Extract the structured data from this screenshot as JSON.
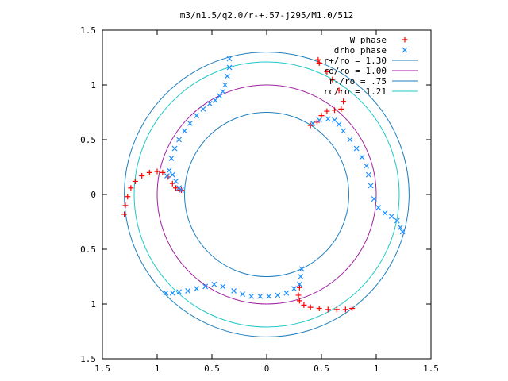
{
  "chart_data": {
    "type": "scatter",
    "title": "m3/n1.5/q2.0/r-+.57-j295/M1.0/512",
    "xlabel": "",
    "ylabel": "",
    "xlim": [
      -1.5,
      1.5
    ],
    "ylim": [
      -1.5,
      1.5
    ],
    "x_tick_labels": [
      "1.5",
      "1",
      "0.5",
      "0",
      "0.5",
      "1",
      "1.5"
    ],
    "y_tick_labels": [
      "1.5",
      "1",
      "0.5",
      "0",
      "0.5",
      "1",
      "1.5"
    ],
    "grid": false,
    "legend_position": "top-right",
    "series": [
      {
        "name": "W phase",
        "marker": "plus",
        "color": "#ff0000",
        "points": [
          [
            -1.3,
            -0.18
          ],
          [
            -1.29,
            -0.1
          ],
          [
            -1.27,
            -0.02
          ],
          [
            -1.24,
            0.06
          ],
          [
            -1.2,
            0.12
          ],
          [
            -1.14,
            0.17
          ],
          [
            -1.07,
            0.2
          ],
          [
            -1.0,
            0.21
          ],
          [
            -0.95,
            0.2
          ],
          [
            -0.9,
            0.16
          ],
          [
            -0.86,
            0.1
          ],
          [
            -0.83,
            0.06
          ],
          [
            -0.8,
            0.04
          ],
          [
            -0.78,
            0.04
          ],
          [
            0.3,
            -0.85
          ],
          [
            0.29,
            -0.92
          ],
          [
            0.3,
            -0.97
          ],
          [
            0.34,
            -1.01
          ],
          [
            0.4,
            -1.03
          ],
          [
            0.48,
            -1.04
          ],
          [
            0.56,
            -1.05
          ],
          [
            0.64,
            -1.05
          ],
          [
            0.72,
            -1.05
          ],
          [
            0.78,
            -1.04
          ],
          [
            0.4,
            0.63
          ],
          [
            0.46,
            0.66
          ],
          [
            0.5,
            0.72
          ],
          [
            0.55,
            0.76
          ],
          [
            0.62,
            0.77
          ],
          [
            0.68,
            0.78
          ],
          [
            0.7,
            0.85
          ],
          [
            0.66,
            0.95
          ],
          [
            0.6,
            1.05
          ],
          [
            0.55,
            1.12
          ],
          [
            0.48,
            1.2
          ],
          [
            0.47,
            1.23
          ]
        ]
      },
      {
        "name": "drho phase",
        "marker": "cross",
        "color": "#1e90ff",
        "points": [
          [
            -0.78,
            0.04
          ],
          [
            -0.8,
            0.06
          ],
          [
            -0.83,
            0.12
          ],
          [
            -0.86,
            0.18
          ],
          [
            -0.89,
            0.22
          ],
          [
            -0.91,
            0.17
          ],
          [
            -0.87,
            0.33
          ],
          [
            -0.84,
            0.42
          ],
          [
            -0.8,
            0.5
          ],
          [
            -0.75,
            0.58
          ],
          [
            -0.7,
            0.65
          ],
          [
            -0.64,
            0.72
          ],
          [
            -0.58,
            0.78
          ],
          [
            -0.52,
            0.83
          ],
          [
            -0.47,
            0.86
          ],
          [
            -0.43,
            0.9
          ],
          [
            -0.4,
            0.94
          ],
          [
            -0.38,
            1.0
          ],
          [
            -0.36,
            1.08
          ],
          [
            -0.34,
            1.16
          ],
          [
            -0.34,
            1.24
          ],
          [
            0.42,
            0.65
          ],
          [
            0.48,
            0.68
          ],
          [
            0.56,
            0.69
          ],
          [
            0.62,
            0.68
          ],
          [
            0.66,
            0.64
          ],
          [
            0.7,
            0.58
          ],
          [
            0.76,
            0.5
          ],
          [
            0.82,
            0.42
          ],
          [
            0.87,
            0.34
          ],
          [
            0.91,
            0.26
          ],
          [
            0.93,
            0.18
          ],
          [
            0.95,
            0.08
          ],
          [
            0.98,
            -0.04
          ],
          [
            1.02,
            -0.12
          ],
          [
            1.08,
            -0.17
          ],
          [
            1.14,
            -0.2
          ],
          [
            1.19,
            -0.24
          ],
          [
            1.22,
            -0.3
          ],
          [
            1.24,
            -0.34
          ],
          [
            0.32,
            -0.68
          ],
          [
            0.31,
            -0.75
          ],
          [
            0.3,
            -0.82
          ],
          [
            0.25,
            -0.86
          ],
          [
            0.18,
            -0.9
          ],
          [
            0.1,
            -0.92
          ],
          [
            0.02,
            -0.93
          ],
          [
            -0.06,
            -0.93
          ],
          [
            -0.14,
            -0.93
          ],
          [
            -0.22,
            -0.91
          ],
          [
            -0.3,
            -0.88
          ],
          [
            -0.4,
            -0.84
          ],
          [
            -0.48,
            -0.82
          ],
          [
            -0.56,
            -0.84
          ],
          [
            -0.64,
            -0.86
          ],
          [
            -0.72,
            -0.88
          ],
          [
            -0.8,
            -0.89
          ],
          [
            -0.86,
            -0.9
          ],
          [
            -0.92,
            -0.9
          ]
        ]
      },
      {
        "name": "r+/ro = 1.30",
        "type": "circle",
        "radius": 1.3,
        "color": "#1f7fbf"
      },
      {
        "name": "ro/ro = 1.00",
        "type": "circle",
        "radius": 1.0,
        "color": "#a020a0"
      },
      {
        "name": "r-/ro = .75",
        "type": "circle",
        "radius": 0.75,
        "color": "#1f7fbf"
      },
      {
        "name": "rc/ro = 1.21",
        "type": "circle",
        "radius": 1.21,
        "color": "#20c8c8"
      }
    ]
  }
}
